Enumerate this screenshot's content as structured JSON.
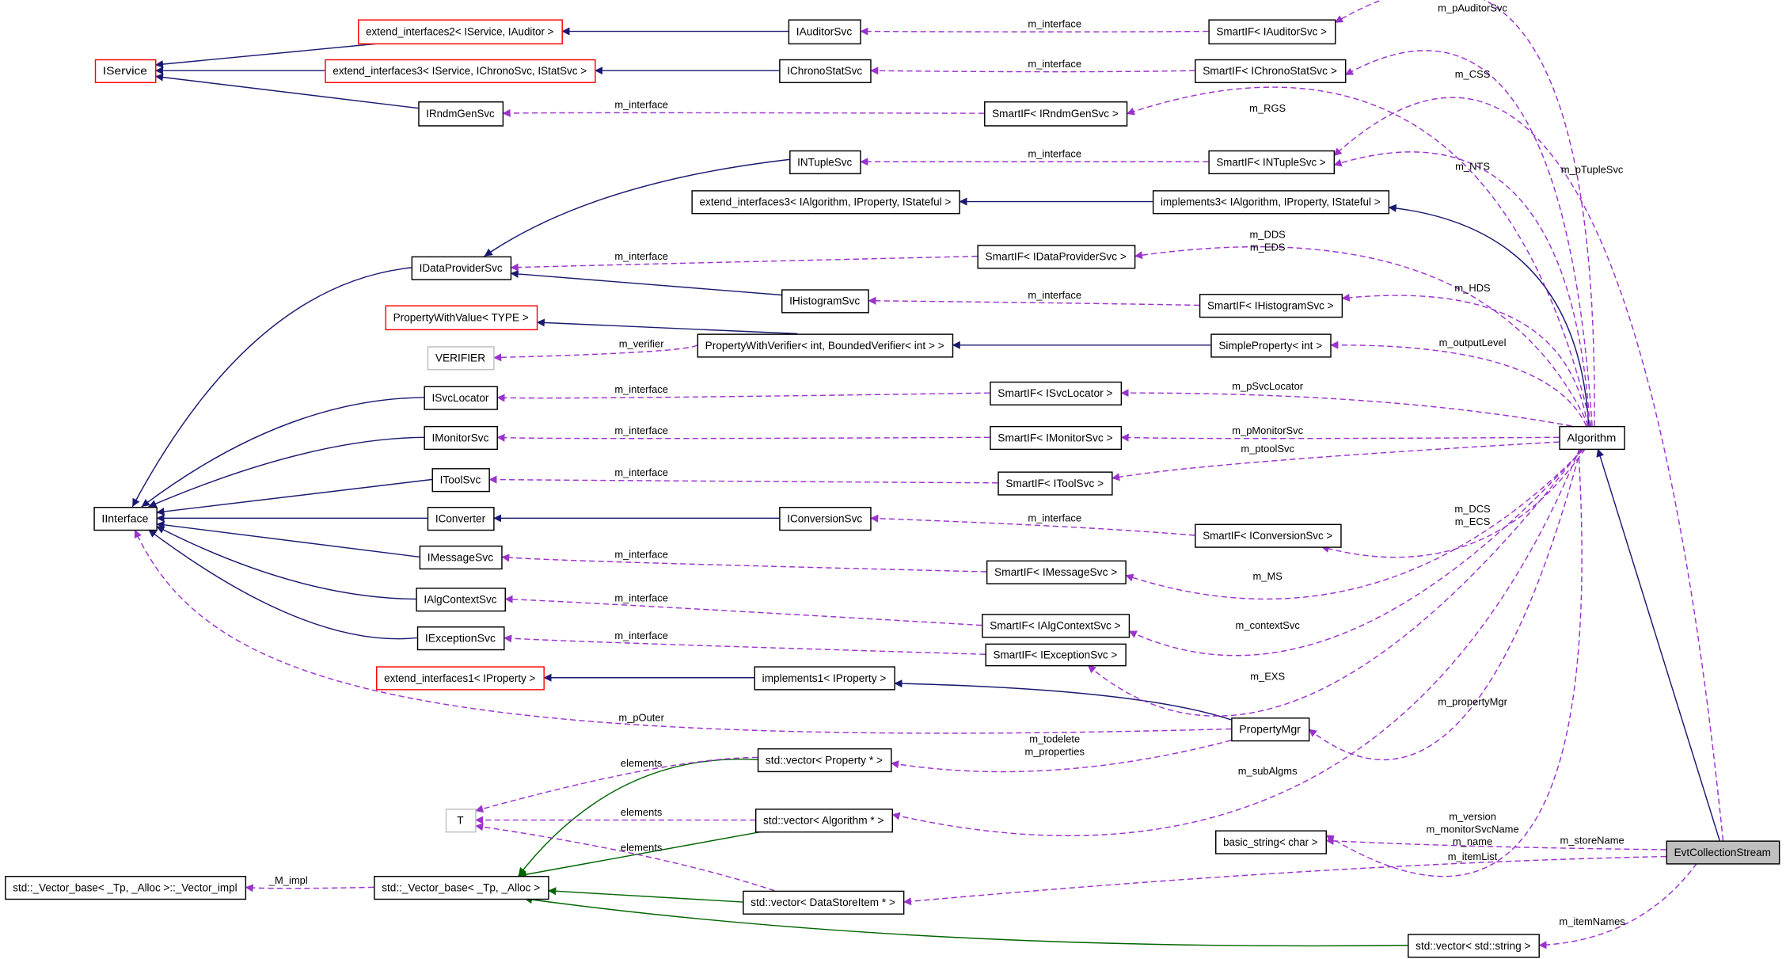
{
  "colors": {
    "inherit": "#191970",
    "template": "#006400",
    "usage": "#9a32cd",
    "highlight_fill": "#bfbfbf",
    "undocumented_border": "#ff0000"
  },
  "nodes": [
    {
      "label": "IService",
      "style": "red"
    },
    {
      "label": "extend_interfaces2< IService, IAuditor >",
      "style": "red"
    },
    {
      "label": "extend_interfaces3< IService, IChronoSvc, IStatSvc >",
      "style": "red"
    },
    {
      "label": "IAuditorSvc",
      "style": "normal"
    },
    {
      "label": "IChronoStatSvc",
      "style": "normal"
    },
    {
      "label": "IRndmGenSvc",
      "style": "normal"
    },
    {
      "label": "SmartIF< IAuditorSvc >",
      "style": "normal"
    },
    {
      "label": "SmartIF< IChronoStatSvc >",
      "style": "normal"
    },
    {
      "label": "SmartIF< IRndmGenSvc >",
      "style": "normal"
    },
    {
      "label": "INTupleSvc",
      "style": "normal"
    },
    {
      "label": "SmartIF< INTupleSvc >",
      "style": "normal"
    },
    {
      "label": "extend_interfaces3< IAlgorithm, IProperty, IStateful >",
      "style": "normal"
    },
    {
      "label": "implements3< IAlgorithm, IProperty, IStateful >",
      "style": "normal"
    },
    {
      "label": "IDataProviderSvc",
      "style": "normal"
    },
    {
      "label": "SmartIF< IDataProviderSvc >",
      "style": "normal"
    },
    {
      "label": "IHistogramSvc",
      "style": "normal"
    },
    {
      "label": "SmartIF< IHistogramSvc >",
      "style": "normal"
    },
    {
      "label": "PropertyWithValue< TYPE >",
      "style": "red"
    },
    {
      "label": "PropertyWithVerifier< int, BoundedVerifier< int > >",
      "style": "normal"
    },
    {
      "label": "SimpleProperty< int >",
      "style": "normal"
    },
    {
      "label": "VERIFIER",
      "style": "gray"
    },
    {
      "label": "ISvcLocator",
      "style": "normal"
    },
    {
      "label": "SmartIF< ISvcLocator >",
      "style": "normal"
    },
    {
      "label": "IMonitorSvc",
      "style": "normal"
    },
    {
      "label": "SmartIF< IMonitorSvc >",
      "style": "normal"
    },
    {
      "label": "IToolSvc",
      "style": "normal"
    },
    {
      "label": "SmartIF< IToolSvc >",
      "style": "normal"
    },
    {
      "label": "Algorithm",
      "style": "normal"
    },
    {
      "label": "IInterface",
      "style": "normal"
    },
    {
      "label": "IConverter",
      "style": "normal"
    },
    {
      "label": "IConversionSvc",
      "style": "normal"
    },
    {
      "label": "SmartIF< IConversionSvc >",
      "style": "normal"
    },
    {
      "label": "IMessageSvc",
      "style": "normal"
    },
    {
      "label": "SmartIF< IMessageSvc >",
      "style": "normal"
    },
    {
      "label": "IAlgContextSvc",
      "style": "normal"
    },
    {
      "label": "SmartIF< IAlgContextSvc >",
      "style": "normal"
    },
    {
      "label": "IExceptionSvc",
      "style": "normal"
    },
    {
      "label": "SmartIF< IExceptionSvc >",
      "style": "normal"
    },
    {
      "label": "extend_interfaces1< IProperty >",
      "style": "red"
    },
    {
      "label": "implements1< IProperty >",
      "style": "normal"
    },
    {
      "label": "PropertyMgr",
      "style": "normal"
    },
    {
      "label": "std::vector< Property * >",
      "style": "normal"
    },
    {
      "label": "T",
      "style": "gray"
    },
    {
      "label": "std::vector< Algorithm * >",
      "style": "normal"
    },
    {
      "label": "basic_string< char >",
      "style": "normal"
    },
    {
      "label": "EvtCollectionStream",
      "style": "highlight"
    },
    {
      "label": "std::_Vector_base< _Tp, _Alloc >::_Vector_impl",
      "style": "normal"
    },
    {
      "label": "std::_Vector_base< _Tp, _Alloc >",
      "style": "normal"
    },
    {
      "label": "std::vector< DataStoreItem * >",
      "style": "normal"
    },
    {
      "label": "std::vector< std::string >",
      "style": "normal"
    }
  ],
  "edges": [
    {
      "from": "IAuditorSvc",
      "to": "extend_interfaces2< IService, IAuditor >",
      "kind": "inherit",
      "label": []
    },
    {
      "from": "IChronoStatSvc",
      "to": "extend_interfaces3< IService, IChronoSvc, IStatSvc >",
      "kind": "inherit",
      "label": []
    },
    {
      "from": "extend_interfaces2< IService, IAuditor >",
      "to": "IService",
      "kind": "inherit",
      "label": []
    },
    {
      "from": "extend_interfaces3< IService, IChronoSvc, IStatSvc >",
      "to": "IService",
      "kind": "inherit",
      "label": []
    },
    {
      "from": "IRndmGenSvc",
      "to": "IService",
      "kind": "inherit",
      "label": []
    },
    {
      "from": "INTupleSvc",
      "to": "IDataProviderSvc",
      "kind": "inherit",
      "label": []
    },
    {
      "from": "implements3< IAlgorithm, IProperty, IStateful >",
      "to": "extend_interfaces3< IAlgorithm, IProperty, IStateful >",
      "kind": "inherit",
      "label": []
    },
    {
      "from": "Algorithm",
      "to": "implements3< IAlgorithm, IProperty, IStateful >",
      "kind": "inherit",
      "label": []
    },
    {
      "from": "IHistogramSvc",
      "to": "IDataProviderSvc",
      "kind": "inherit",
      "label": []
    },
    {
      "from": "PropertyWithVerifier< int, BoundedVerifier< int > >",
      "to": "PropertyWithValue< TYPE >",
      "kind": "inherit",
      "label": []
    },
    {
      "from": "SimpleProperty< int >",
      "to": "PropertyWithVerifier< int, BoundedVerifier< int > >",
      "kind": "inherit",
      "label": []
    },
    {
      "from": "IDataProviderSvc",
      "to": "IInterface",
      "kind": "inherit",
      "label": []
    },
    {
      "from": "ISvcLocator",
      "to": "IInterface",
      "kind": "inherit",
      "label": []
    },
    {
      "from": "IMonitorSvc",
      "to": "IInterface",
      "kind": "inherit",
      "label": []
    },
    {
      "from": "IToolSvc",
      "to": "IInterface",
      "kind": "inherit",
      "label": []
    },
    {
      "from": "IConverter",
      "to": "IInterface",
      "kind": "inherit",
      "label": []
    },
    {
      "from": "IMessageSvc",
      "to": "IInterface",
      "kind": "inherit",
      "label": []
    },
    {
      "from": "IAlgContextSvc",
      "to": "IInterface",
      "kind": "inherit",
      "label": []
    },
    {
      "from": "IExceptionSvc",
      "to": "IInterface",
      "kind": "inherit",
      "label": []
    },
    {
      "from": "IConversionSvc",
      "to": "IConverter",
      "kind": "inherit",
      "label": []
    },
    {
      "from": "implements1< IProperty >",
      "to": "extend_interfaces1< IProperty >",
      "kind": "inherit",
      "label": []
    },
    {
      "from": "PropertyMgr",
      "to": "implements1< IProperty >",
      "kind": "inherit",
      "label": []
    },
    {
      "from": "EvtCollectionStream",
      "to": "Algorithm",
      "kind": "inherit",
      "label": []
    },
    {
      "from": "std::vector< Property * >",
      "to": "std::_Vector_base< _Tp, _Alloc >",
      "kind": "template",
      "label": []
    },
    {
      "from": "std::vector< Algorithm * >",
      "to": "std::_Vector_base< _Tp, _Alloc >",
      "kind": "template",
      "label": []
    },
    {
      "from": "std::vector< DataStoreItem * >",
      "to": "std::_Vector_base< _Tp, _Alloc >",
      "kind": "template",
      "label": []
    },
    {
      "from": "std::vector< std::string >",
      "to": "std::_Vector_base< _Tp, _Alloc >",
      "kind": "template",
      "label": []
    },
    {
      "from": "SmartIF< IAuditorSvc >",
      "to": "IAuditorSvc",
      "kind": "usage",
      "label": [
        "m_interface"
      ]
    },
    {
      "from": "SmartIF< IChronoStatSvc >",
      "to": "IChronoStatSvc",
      "kind": "usage",
      "label": [
        "m_interface"
      ]
    },
    {
      "from": "SmartIF< IRndmGenSvc >",
      "to": "IRndmGenSvc",
      "kind": "usage",
      "label": [
        "m_interface"
      ]
    },
    {
      "from": "SmartIF< INTupleSvc >",
      "to": "INTupleSvc",
      "kind": "usage",
      "label": [
        "m_interface"
      ]
    },
    {
      "from": "SmartIF< IDataProviderSvc >",
      "to": "IDataProviderSvc",
      "kind": "usage",
      "label": [
        "m_interface"
      ]
    },
    {
      "from": "SmartIF< IHistogramSvc >",
      "to": "IHistogramSvc",
      "kind": "usage",
      "label": [
        "m_interface"
      ]
    },
    {
      "from": "PropertyWithVerifier< int, BoundedVerifier< int > >",
      "to": "VERIFIER",
      "kind": "usage",
      "label": [
        "m_verifier"
      ]
    },
    {
      "from": "SmartIF< ISvcLocator >",
      "to": "ISvcLocator",
      "kind": "usage",
      "label": [
        "m_interface"
      ]
    },
    {
      "from": "SmartIF< IMonitorSvc >",
      "to": "IMonitorSvc",
      "kind": "usage",
      "label": [
        "m_interface"
      ]
    },
    {
      "from": "SmartIF< IToolSvc >",
      "to": "IToolSvc",
      "kind": "usage",
      "label": [
        "m_interface"
      ]
    },
    {
      "from": "SmartIF< IConversionSvc >",
      "to": "IConversionSvc",
      "kind": "usage",
      "label": [
        "m_interface"
      ]
    },
    {
      "from": "SmartIF< IMessageSvc >",
      "to": "IMessageSvc",
      "kind": "usage",
      "label": [
        "m_interface"
      ]
    },
    {
      "from": "SmartIF< IAlgContextSvc >",
      "to": "IAlgContextSvc",
      "kind": "usage",
      "label": [
        "m_interface"
      ]
    },
    {
      "from": "SmartIF< IExceptionSvc >",
      "to": "IExceptionSvc",
      "kind": "usage",
      "label": [
        "m_interface"
      ]
    },
    {
      "from": "PropertyMgr",
      "to": "IInterface",
      "kind": "usage",
      "label": [
        "m_pOuter"
      ]
    },
    {
      "from": "PropertyMgr",
      "to": "std::vector< Property * >",
      "kind": "usage",
      "label": [
        "m_todelete",
        "m_properties"
      ]
    },
    {
      "from": "std::vector< Property * >",
      "to": "T",
      "kind": "usage",
      "label": [
        "elements"
      ]
    },
    {
      "from": "std::vector< Algorithm * >",
      "to": "T",
      "kind": "usage",
      "label": [
        "elements"
      ]
    },
    {
      "from": "std::vector< DataStoreItem * >",
      "to": "T",
      "kind": "usage",
      "label": [
        "elements"
      ]
    },
    {
      "from": "std::_Vector_base< _Tp, _Alloc >",
      "to": "std::_Vector_base< _Tp, _Alloc >::_Vector_impl",
      "kind": "usage",
      "label": [
        "_M_impl"
      ]
    },
    {
      "from": "Algorithm",
      "to": "SmartIF< IAuditorSvc >",
      "kind": "usage",
      "label": [
        "m_pAuditorSvc"
      ]
    },
    {
      "from": "Algorithm",
      "to": "SmartIF< IChronoStatSvc >",
      "kind": "usage",
      "label": [
        "m_CSS"
      ]
    },
    {
      "from": "Algorithm",
      "to": "SmartIF< IRndmGenSvc >",
      "kind": "usage",
      "label": [
        "m_RGS"
      ]
    },
    {
      "from": "Algorithm",
      "to": "SmartIF< INTupleSvc >",
      "kind": "usage",
      "label": [
        "m_NTS"
      ]
    },
    {
      "from": "EvtCollectionStream",
      "to": "SmartIF< INTupleSvc >",
      "kind": "usage",
      "label": [
        "m_pTupleSvc"
      ]
    },
    {
      "from": "Algorithm",
      "to": "SmartIF< IDataProviderSvc >",
      "kind": "usage",
      "label": [
        "m_DDS",
        "m_EDS"
      ]
    },
    {
      "from": "Algorithm",
      "to": "SmartIF< IHistogramSvc >",
      "kind": "usage",
      "label": [
        "m_HDS"
      ]
    },
    {
      "from": "Algorithm",
      "to": "SimpleProperty< int >",
      "kind": "usage",
      "label": [
        "m_outputLevel"
      ]
    },
    {
      "from": "Algorithm",
      "to": "SmartIF< ISvcLocator >",
      "kind": "usage",
      "label": [
        "m_pSvcLocator"
      ]
    },
    {
      "from": "Algorithm",
      "to": "SmartIF< IMonitorSvc >",
      "kind": "usage",
      "label": [
        "m_pMonitorSvc"
      ]
    },
    {
      "from": "Algorithm",
      "to": "SmartIF< IToolSvc >",
      "kind": "usage",
      "label": [
        "m_ptoolSvc"
      ]
    },
    {
      "from": "Algorithm",
      "to": "SmartIF< IConversionSvc >",
      "kind": "usage",
      "label": [
        "m_DCS",
        "m_ECS"
      ]
    },
    {
      "from": "Algorithm",
      "to": "SmartIF< IMessageSvc >",
      "kind": "usage",
      "label": [
        "m_MS"
      ]
    },
    {
      "from": "Algorithm",
      "to": "SmartIF< IAlgContextSvc >",
      "kind": "usage",
      "label": [
        "m_contextSvc"
      ]
    },
    {
      "from": "Algorithm",
      "to": "SmartIF< IExceptionSvc >",
      "kind": "usage",
      "label": [
        "m_EXS"
      ]
    },
    {
      "from": "Algorithm",
      "to": "PropertyMgr",
      "kind": "usage",
      "label": [
        "m_propertyMgr"
      ]
    },
    {
      "from": "Algorithm",
      "to": "std::vector< Algorithm * >",
      "kind": "usage",
      "label": [
        "m_subAlgms"
      ]
    },
    {
      "from": "Algorithm",
      "to": "basic_string< char >",
      "kind": "usage",
      "label": [
        "m_version",
        "m_monitorSvcName",
        "m_name"
      ]
    },
    {
      "from": "EvtCollectionStream",
      "to": "basic_string< char >",
      "kind": "usage",
      "label": [
        "m_storeName"
      ]
    },
    {
      "from": "EvtCollectionStream",
      "to": "std::vector< DataStoreItem * >",
      "kind": "usage",
      "label": [
        "m_itemList"
      ]
    },
    {
      "from": "EvtCollectionStream",
      "to": "std::vector< std::string >",
      "kind": "usage",
      "label": [
        "m_itemNames"
      ]
    }
  ]
}
